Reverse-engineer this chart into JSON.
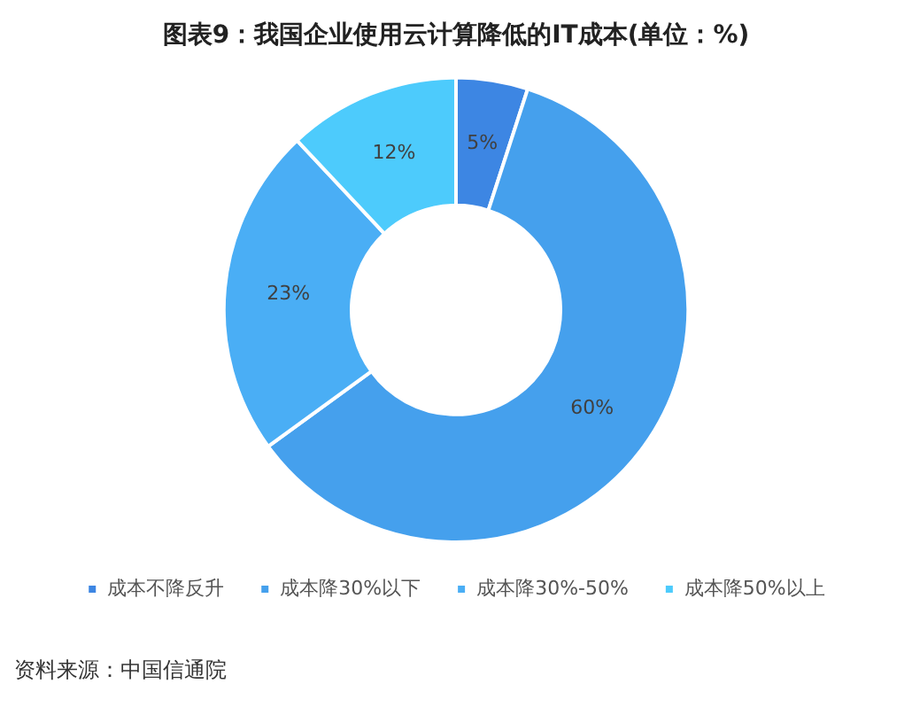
{
  "chart_data": {
    "type": "donut",
    "title": "图表9：我国企业使用云计算降低的IT成本(单位：%)",
    "categories": [
      "成本不降反升",
      "成本降30%以下",
      "成本降30%-50%",
      "成本降50%以上"
    ],
    "values": [
      5,
      60,
      23,
      12
    ],
    "colors": [
      "#3d86e3",
      "#45a0ed",
      "#4aaef5",
      "#4dcbfc"
    ],
    "value_labels": [
      "5%",
      "60%",
      "23%",
      "12%"
    ],
    "legend": "bottom",
    "annotations": [
      "资料来源：中国信通院"
    ]
  }
}
